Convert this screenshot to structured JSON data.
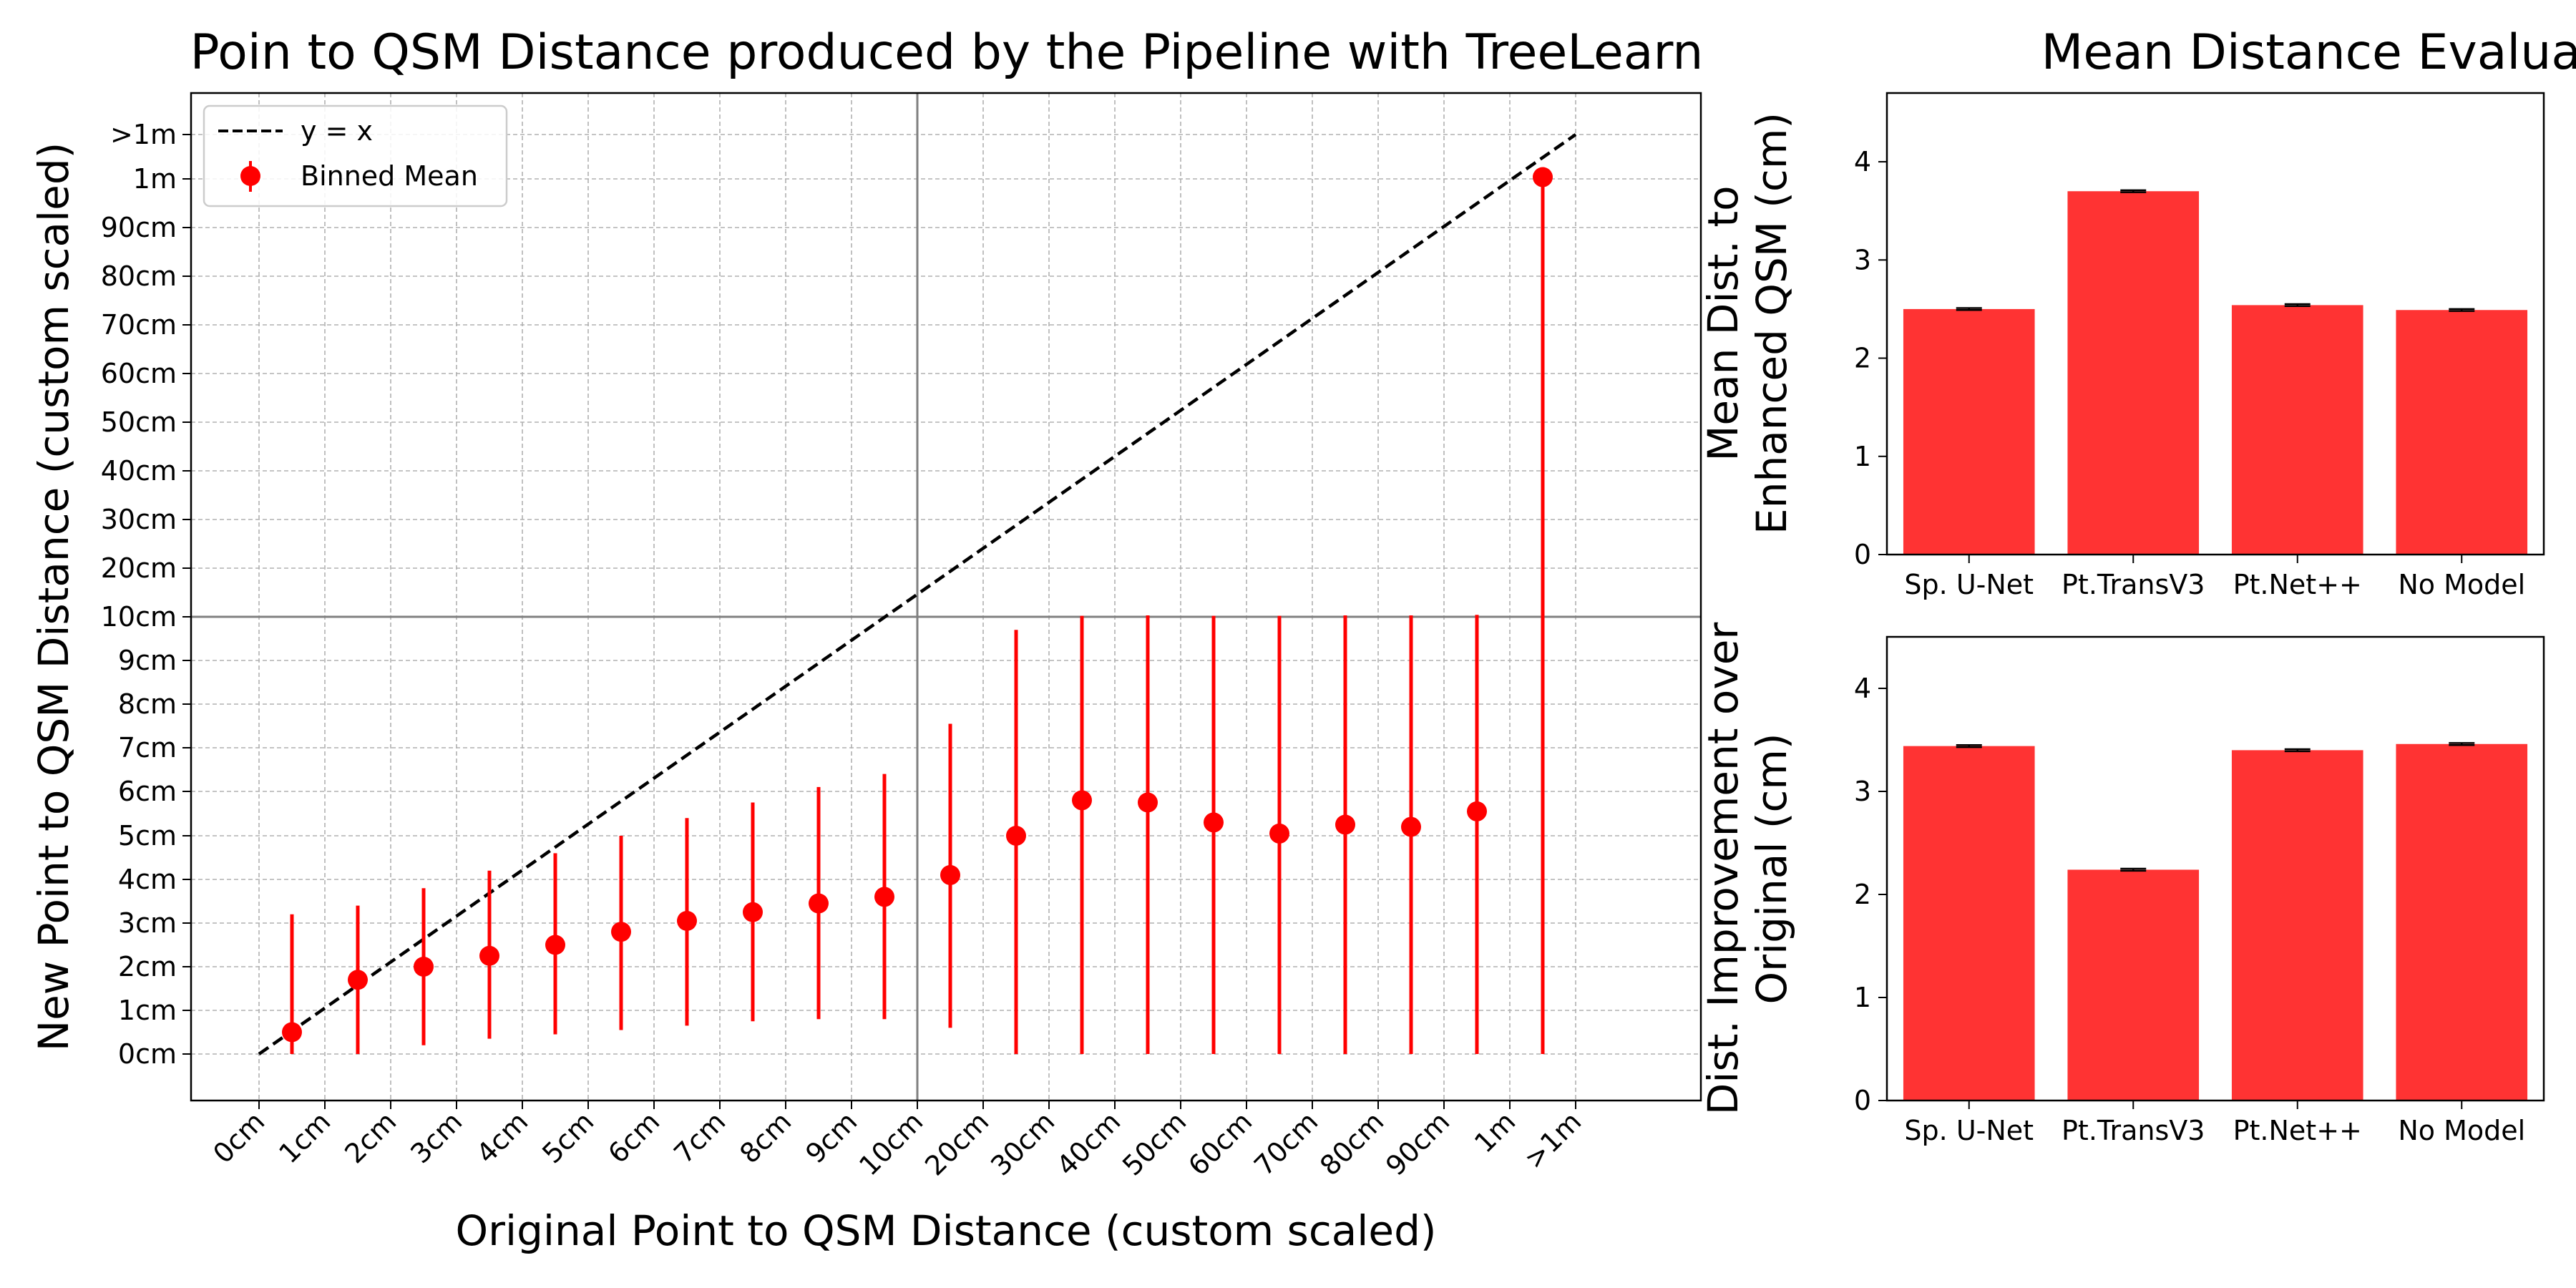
{
  "chart_data": [
    {
      "type": "scatter",
      "title": "Poin to QSM Distance produced by the Pipeline with TreeLearn",
      "xlabel": "Original Point to QSM Distance (custom scaled)",
      "ylabel": "New Point to QSM Distance (custom scaled)",
      "tick_labels": [
        "0cm",
        "1cm",
        "2cm",
        "3cm",
        "4cm",
        "5cm",
        "6cm",
        "7cm",
        "8cm",
        "9cm",
        "10cm",
        "20cm",
        "30cm",
        "40cm",
        "50cm",
        "60cm",
        "70cm",
        "80cm",
        "90cm",
        "1m",
        ">1m"
      ],
      "grid": true,
      "legend_position": "top-left",
      "legend": [
        "y = x",
        "Binned Mean"
      ],
      "reference_line": {
        "label": "y = x",
        "style": "dashed",
        "color": "#000000"
      },
      "series": [
        {
          "name": "Binned Mean",
          "color": "#ff0000",
          "x_cm": [
            0.5,
            1.5,
            2.5,
            3.5,
            4.5,
            5.5,
            6.5,
            7.5,
            8.5,
            9.5,
            15,
            25,
            35,
            45,
            55,
            65,
            75,
            85,
            95,
            150
          ],
          "y_cm": [
            0.5,
            1.7,
            2.0,
            2.25,
            2.5,
            2.8,
            3.05,
            3.25,
            3.45,
            3.6,
            4.1,
            5.0,
            5.8,
            5.75,
            5.3,
            5.05,
            5.25,
            5.2,
            5.55,
            104
          ],
          "err_low_cm": [
            0,
            0,
            0.2,
            0.35,
            0.45,
            0.55,
            0.65,
            0.75,
            0.8,
            0.8,
            0.6,
            0,
            0,
            0,
            0,
            0,
            0,
            0,
            0,
            0
          ],
          "err_high_cm": [
            3.2,
            3.4,
            3.8,
            4.2,
            4.6,
            5.0,
            5.4,
            5.75,
            6.1,
            6.4,
            7.55,
            9.7,
            10.2,
            10.3,
            10.2,
            10.2,
            10.3,
            10.3,
            10.4,
            104
          ]
        }
      ]
    },
    {
      "type": "bar",
      "title": "Mean Distance Evaluation",
      "xlabel": "",
      "ylabel": "Mean Dist. to\nEnhanced QSM (cm)",
      "categories": [
        "Sp. U-Net",
        "Pt.TransV3",
        "Pt.Net++",
        "No Model"
      ],
      "values": [
        2.5,
        3.7,
        2.54,
        2.49
      ],
      "errors": [
        0.01,
        0.01,
        0.01,
        0.01
      ],
      "ylim": [
        0,
        4.7
      ],
      "yticks": [
        0,
        1,
        2,
        3,
        4
      ],
      "color": "#ff3333",
      "grid": false
    },
    {
      "type": "bar",
      "title": "",
      "xlabel": "",
      "ylabel": "Dist. Improvement over\nOriginal (cm)",
      "categories": [
        "Sp. U-Net",
        "Pt.TransV3",
        "Pt.Net++",
        "No Model"
      ],
      "values": [
        3.44,
        2.24,
        3.4,
        3.46
      ],
      "errors": [
        0.01,
        0.01,
        0.01,
        0.01
      ],
      "ylim": [
        0,
        4.5
      ],
      "yticks": [
        0,
        1,
        2,
        3,
        4
      ],
      "color": "#ff3333",
      "grid": false
    }
  ]
}
